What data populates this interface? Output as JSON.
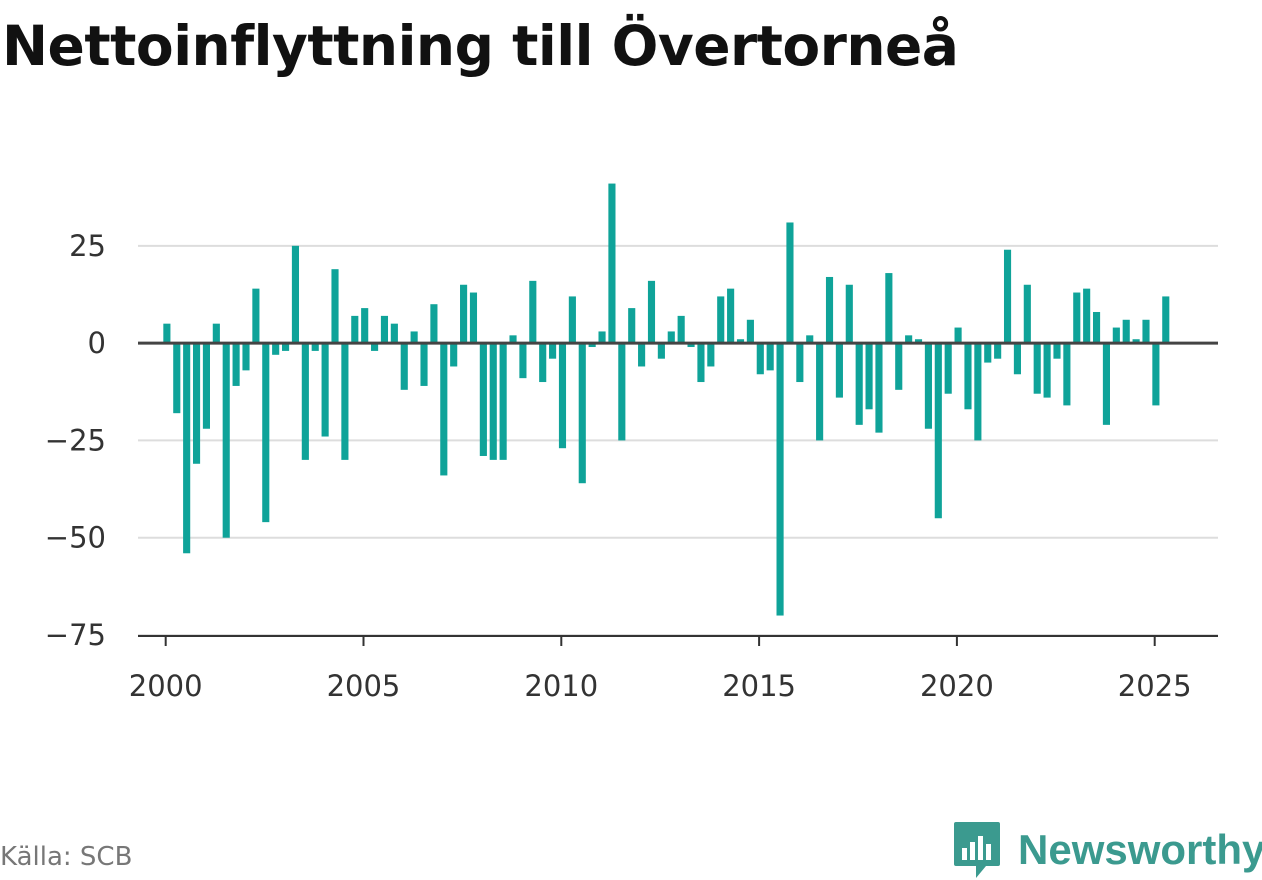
{
  "title": "Nettoinflyttning till Övertorneå",
  "source": "Källa: SCB",
  "brand": {
    "name": "Newsworthy",
    "color": "#3b9a8f",
    "icon": "chart-bubble-icon"
  },
  "colors": {
    "bar": "#0fa399",
    "zero_line": "#444444",
    "grid": "#dddddd",
    "axis": "#333333"
  },
  "chart_data": {
    "type": "bar",
    "title": "Nettoinflyttning till Övertorneå",
    "xlabel": "",
    "ylabel": "",
    "frequency": "quarterly",
    "start_year": 2000,
    "start_quarter": 1,
    "values": [
      5,
      -18,
      -54,
      -31,
      -22,
      5,
      -50,
      -11,
      -7,
      14,
      -46,
      -3,
      -2,
      25,
      -30,
      -2,
      -24,
      19,
      -30,
      7,
      9,
      -2,
      7,
      5,
      -12,
      3,
      -11,
      10,
      -34,
      -6,
      15,
      13,
      -29,
      -30,
      -30,
      2,
      -9,
      16,
      -10,
      -4,
      -27,
      12,
      -36,
      -1,
      3,
      41,
      -25,
      9,
      -6,
      16,
      -4,
      3,
      7,
      -1,
      -10,
      -6,
      12,
      14,
      1,
      6,
      -8,
      -7,
      -70,
      31,
      -10,
      2,
      -25,
      17,
      -14,
      15,
      -21,
      -17,
      -23,
      18,
      -12,
      2,
      1,
      -22,
      -45,
      -13,
      4,
      -17,
      -25,
      -5,
      -4,
      24,
      -8,
      15,
      -13,
      -14,
      -4,
      -16,
      13,
      14,
      8,
      -21,
      4,
      6,
      1,
      6,
      -16,
      12
    ],
    "ylim": [
      -75,
      45
    ],
    "yticks": [
      25,
      0,
      -25,
      -50,
      -75
    ],
    "ytick_labels": [
      "25",
      "0",
      "−25",
      "−50",
      "−75"
    ],
    "xlim": [
      1999.3,
      2026.6
    ],
    "xticks": [
      2000,
      2005,
      2010,
      2015,
      2020,
      2025
    ],
    "xtick_labels": [
      "2000",
      "2005",
      "2010",
      "2015",
      "2020",
      "2025"
    ],
    "grid": true,
    "legend": "none"
  }
}
